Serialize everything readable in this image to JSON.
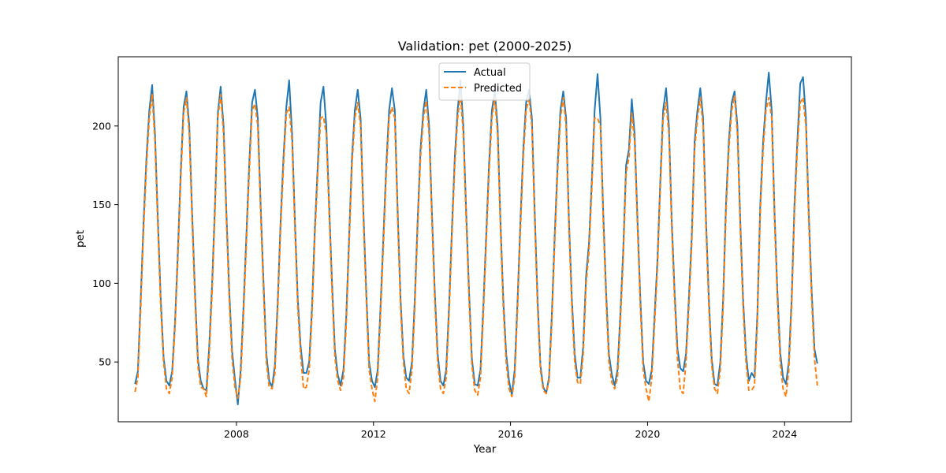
{
  "colors": {
    "actual": "#1f77b4",
    "predicted": "#ff7f0e",
    "axis": "#000000",
    "background": "#ffffff"
  },
  "chart_data": {
    "type": "line",
    "title": "Validation: pet (2000-2025)",
    "xlabel": "Year",
    "ylabel": "pet",
    "xlim": [
      2004.55,
      2025.95
    ],
    "ylim": [
      12,
      244
    ],
    "xticks": [
      2008,
      2012,
      2016,
      2020,
      2024
    ],
    "xtick_labels": [
      "2008",
      "2012",
      "2016",
      "2020",
      "2024"
    ],
    "yticks": [
      50,
      100,
      150,
      200
    ],
    "ytick_labels": [
      "50",
      "100",
      "150",
      "200"
    ],
    "grid": false,
    "legend_position": "top-center",
    "x_start": 2005.04,
    "x_step": 0.08333,
    "series": [
      {
        "name": "Actual",
        "style": "solid",
        "values": [
          36,
          44,
          90,
          140,
          180,
          210,
          226,
          195,
          140,
          90,
          53,
          38,
          35,
          44,
          75,
          120,
          170,
          212,
          222,
          200,
          145,
          95,
          52,
          38,
          33,
          32,
          60,
          100,
          150,
          208,
          225,
          200,
          145,
          95,
          57,
          39,
          23,
          45,
          85,
          130,
          175,
          215,
          223,
          205,
          150,
          100,
          55,
          38,
          34,
          48,
          90,
          140,
          180,
          212,
          229,
          195,
          140,
          90,
          60,
          43,
          43,
          50,
          85,
          135,
          175,
          215,
          225,
          200,
          150,
          100,
          58,
          42,
          35,
          45,
          80,
          130,
          180,
          210,
          223,
          205,
          145,
          95,
          50,
          38,
          34,
          45,
          85,
          130,
          175,
          210,
          224,
          210,
          145,
          90,
          54,
          40,
          38,
          50,
          90,
          140,
          185,
          210,
          223,
          200,
          145,
          95,
          55,
          38,
          35,
          45,
          85,
          135,
          180,
          210,
          229,
          200,
          145,
          95,
          52,
          36,
          35,
          45,
          85,
          130,
          175,
          210,
          222,
          200,
          140,
          90,
          55,
          38,
          29,
          45,
          90,
          140,
          185,
          215,
          223,
          205,
          145,
          90,
          48,
          34,
          30,
          40,
          80,
          130,
          175,
          210,
          222,
          205,
          140,
          90,
          55,
          40,
          40,
          60,
          105,
          125,
          165,
          210,
          233,
          205,
          145,
          95,
          55,
          42,
          35,
          45,
          80,
          120,
          175,
          185,
          217,
          195,
          140,
          90,
          50,
          38,
          36,
          45,
          80,
          115,
          165,
          210,
          224,
          200,
          140,
          95,
          58,
          46,
          44,
          55,
          90,
          130,
          190,
          210,
          224,
          205,
          140,
          90,
          52,
          36,
          35,
          50,
          90,
          150,
          190,
          215,
          222,
          200,
          140,
          90,
          55,
          38,
          43,
          40,
          80,
          150,
          190,
          215,
          234,
          210,
          145,
          95,
          56,
          40,
          36,
          50,
          90,
          150,
          190,
          227,
          231,
          205,
          145,
          95,
          58,
          49
        ]
      },
      {
        "name": "Predicted",
        "style": "dashed",
        "values": [
          31,
          40,
          85,
          135,
          175,
          205,
          220,
          190,
          135,
          85,
          50,
          33,
          30,
          40,
          72,
          115,
          165,
          208,
          218,
          195,
          140,
          90,
          48,
          34,
          33,
          28,
          55,
          95,
          145,
          205,
          220,
          195,
          140,
          90,
          52,
          34,
          27,
          40,
          80,
          125,
          170,
          210,
          214,
          200,
          145,
          95,
          50,
          34,
          33,
          43,
          85,
          135,
          175,
          208,
          212,
          190,
          135,
          85,
          55,
          33,
          34,
          45,
          80,
          130,
          170,
          205,
          206,
          195,
          145,
          95,
          53,
          38,
          32,
          40,
          75,
          125,
          175,
          205,
          215,
          200,
          140,
          90,
          45,
          33,
          25,
          40,
          80,
          125,
          170,
          205,
          212,
          205,
          140,
          85,
          50,
          33,
          30,
          45,
          85,
          135,
          180,
          205,
          216,
          195,
          140,
          90,
          50,
          33,
          30,
          40,
          80,
          130,
          175,
          205,
          220,
          195,
          140,
          90,
          48,
          32,
          29,
          40,
          80,
          125,
          170,
          205,
          218,
          195,
          135,
          85,
          50,
          33,
          28,
          40,
          85,
          135,
          180,
          210,
          218,
          200,
          140,
          85,
          45,
          32,
          30,
          38,
          75,
          125,
          170,
          205,
          218,
          200,
          135,
          85,
          50,
          37,
          36,
          55,
          100,
          120,
          160,
          205,
          205,
          200,
          140,
          90,
          50,
          37,
          33,
          40,
          75,
          115,
          170,
          180,
          208,
          190,
          135,
          85,
          45,
          33,
          25,
          40,
          75,
          110,
          160,
          205,
          215,
          195,
          135,
          90,
          52,
          32,
          30,
          50,
          85,
          125,
          185,
          205,
          218,
          200,
          135,
          85,
          48,
          33,
          30,
          45,
          85,
          145,
          185,
          210,
          219,
          195,
          135,
          85,
          50,
          32,
          32,
          35,
          75,
          145,
          185,
          210,
          218,
          205,
          140,
          90,
          50,
          33,
          28,
          45,
          85,
          145,
          185,
          215,
          218,
          200,
          140,
          90,
          52,
          35
        ]
      }
    ]
  }
}
